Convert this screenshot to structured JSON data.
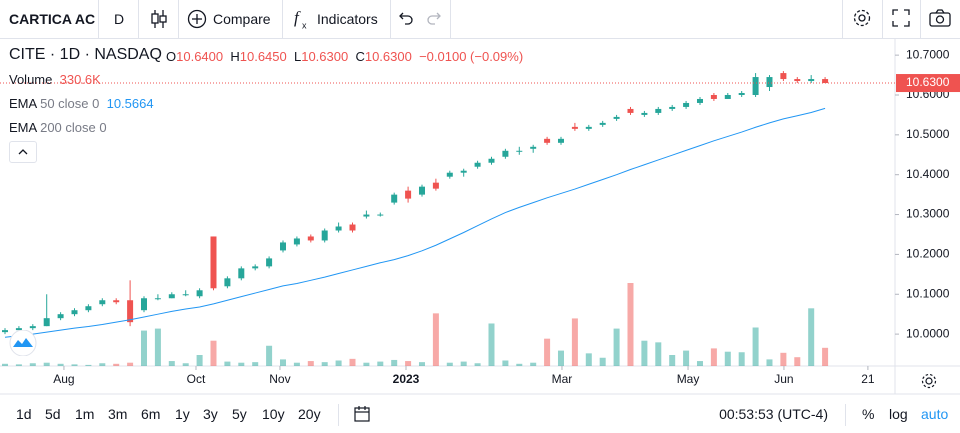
{
  "toolbar": {
    "symbol_name": "CARTICA AC",
    "interval": "D",
    "compare": "Compare",
    "indicators": "Indicators"
  },
  "legend": {
    "symbol": "CITE",
    "interval": "1D",
    "exchange": "NASDAQ",
    "open_label": "O",
    "open": "10.6400",
    "high_label": "H",
    "high": "10.6450",
    "low_label": "L",
    "low": "10.6300",
    "close_label": "C",
    "close": "10.6300",
    "change": "−0.0100 (−0.09%)",
    "volume_name": "Volume",
    "volume_value": "330.6K",
    "ema1_name": "EMA",
    "ema1_params": "50 close 0",
    "ema1_value": "10.5664",
    "ema2_name": "EMA",
    "ema2_params": "200 close 0"
  },
  "footer": {
    "ranges": [
      "1d",
      "5d",
      "1m",
      "3m",
      "6m",
      "1y",
      "3y",
      "5y",
      "10y",
      "20y"
    ],
    "clock": "00:53:53 (UTC-4)",
    "percent": "%",
    "log": "log",
    "auto": "auto"
  },
  "chart_data": {
    "type": "candlestick",
    "up_color": "#26a69a",
    "down_color": "#ef5350",
    "ema_color": "#2196f3",
    "xlim": [
      -0.36,
      64.03
    ],
    "xticks": [
      {
        "value": 4.24,
        "label": "Aug"
      },
      {
        "value": 13.74,
        "label": "Oct"
      },
      {
        "value": 19.78,
        "label": "Nov"
      },
      {
        "value": 28.85,
        "label": "2023"
      },
      {
        "value": 40.07,
        "label": "Mar"
      },
      {
        "value": 49.14,
        "label": "May"
      },
      {
        "value": 56.04,
        "label": "Jun"
      },
      {
        "value": 62.08,
        "label": "21"
      }
    ],
    "ylim": [
      9.92,
      10.743
    ],
    "yticks": [
      {
        "value": 10.0,
        "label": "10.0000"
      },
      {
        "value": 10.1,
        "label": "10.1000"
      },
      {
        "value": 10.2,
        "label": "10.2000"
      },
      {
        "value": 10.3,
        "label": "10.3000"
      },
      {
        "value": 10.4,
        "label": "10.4000"
      },
      {
        "value": 10.5,
        "label": "10.5000"
      },
      {
        "value": 10.6,
        "label": "10.6000"
      },
      {
        "value": 10.7,
        "label": "10.7000"
      }
    ],
    "grid": false,
    "last_price": {
      "value": 10.63,
      "label": "10.6300"
    },
    "volume_lim": [
      0,
      2000000
    ],
    "ohlc": [
      [
        10.005,
        10.015,
        10.0,
        10.01
      ],
      [
        10.01,
        10.02,
        10.01,
        10.015
      ],
      [
        10.015,
        10.025,
        10.01,
        10.02
      ],
      [
        10.02,
        10.1,
        10.02,
        10.04
      ],
      [
        10.04,
        10.055,
        10.035,
        10.05
      ],
      [
        10.05,
        10.065,
        10.045,
        10.06
      ],
      [
        10.06,
        10.075,
        10.055,
        10.07
      ],
      [
        10.075,
        10.09,
        10.07,
        10.085
      ],
      [
        10.085,
        10.09,
        10.075,
        10.08
      ],
      [
        10.085,
        10.135,
        10.02,
        10.03
      ],
      [
        10.06,
        10.095,
        10.055,
        10.09
      ],
      [
        10.09,
        10.1,
        10.085,
        10.09
      ],
      [
        10.09,
        10.105,
        10.09,
        10.1
      ],
      [
        10.1,
        10.11,
        10.095,
        10.1
      ],
      [
        10.095,
        10.115,
        10.09,
        10.11
      ],
      [
        10.245,
        10.245,
        10.11,
        10.115
      ],
      [
        10.12,
        10.145,
        10.115,
        10.14
      ],
      [
        10.14,
        10.17,
        10.135,
        10.165
      ],
      [
        10.165,
        10.175,
        10.16,
        10.17
      ],
      [
        10.17,
        10.195,
        10.165,
        10.19
      ],
      [
        10.21,
        10.235,
        10.205,
        10.23
      ],
      [
        10.225,
        10.245,
        10.22,
        10.24
      ],
      [
        10.245,
        10.25,
        10.23,
        10.235
      ],
      [
        10.235,
        10.265,
        10.23,
        10.26
      ],
      [
        10.26,
        10.28,
        10.255,
        10.27
      ],
      [
        10.275,
        10.28,
        10.255,
        10.26
      ],
      [
        10.295,
        10.31,
        10.29,
        10.3
      ],
      [
        10.3,
        10.305,
        10.295,
        10.3
      ],
      [
        10.33,
        10.355,
        10.325,
        10.35
      ],
      [
        10.36,
        10.37,
        10.33,
        10.34
      ],
      [
        10.35,
        10.375,
        10.345,
        10.37
      ],
      [
        10.38,
        10.39,
        10.36,
        10.365
      ],
      [
        10.395,
        10.41,
        10.39,
        10.405
      ],
      [
        10.405,
        10.415,
        10.395,
        10.41
      ],
      [
        10.42,
        10.435,
        10.415,
        10.43
      ],
      [
        10.43,
        10.445,
        10.425,
        10.44
      ],
      [
        10.445,
        10.465,
        10.44,
        10.46
      ],
      [
        10.46,
        10.47,
        10.45,
        10.46
      ],
      [
        10.465,
        10.475,
        10.455,
        10.47
      ],
      [
        10.49,
        10.495,
        10.475,
        10.48
      ],
      [
        10.48,
        10.495,
        10.475,
        10.49
      ],
      [
        10.52,
        10.53,
        10.51,
        10.515
      ],
      [
        10.515,
        10.525,
        10.51,
        10.52
      ],
      [
        10.525,
        10.535,
        10.52,
        10.53
      ],
      [
        10.54,
        10.55,
        10.535,
        10.545
      ],
      [
        10.565,
        10.57,
        10.55,
        10.555
      ],
      [
        10.55,
        10.56,
        10.545,
        10.555
      ],
      [
        10.555,
        10.57,
        10.55,
        10.565
      ],
      [
        10.565,
        10.575,
        10.56,
        10.57
      ],
      [
        10.57,
        10.585,
        10.565,
        10.58
      ],
      [
        10.58,
        10.595,
        10.575,
        10.59
      ],
      [
        10.6,
        10.605,
        10.585,
        10.59
      ],
      [
        10.59,
        10.605,
        10.59,
        10.6
      ],
      [
        10.6,
        10.61,
        10.595,
        10.605
      ],
      [
        10.6,
        10.655,
        10.595,
        10.645
      ],
      [
        10.62,
        10.65,
        10.61,
        10.645
      ],
      [
        10.655,
        10.66,
        10.635,
        10.64
      ],
      [
        10.64,
        10.645,
        10.63,
        10.635
      ],
      [
        10.635,
        10.65,
        10.63,
        10.64
      ],
      [
        10.64,
        10.645,
        10.63,
        10.63
      ]
    ],
    "volume": [
      40000,
      30000,
      50000,
      60000,
      40000,
      30000,
      20000,
      50000,
      40000,
      60000,
      644000,
      680000,
      90000,
      50000,
      200000,
      460000,
      80000,
      60000,
      70000,
      368000,
      120000,
      60000,
      90000,
      70000,
      100000,
      130000,
      60000,
      80000,
      110000,
      90000,
      70000,
      957000,
      60000,
      80000,
      50000,
      773000,
      100000,
      40000,
      60000,
      497000,
      280000,
      865000,
      230000,
      150000,
      680000,
      1509000,
      460000,
      430000,
      200000,
      280000,
      90000,
      320000,
      260000,
      250000,
      700000,
      120000,
      240000,
      160000,
      1049000,
      330600
    ],
    "ema": [
      9.992,
      9.996,
      10.0,
      10.005,
      10.01,
      10.015,
      10.019,
      10.024,
      10.03,
      10.036,
      10.043,
      10.05,
      10.057,
      10.063,
      10.068,
      10.076,
      10.085,
      10.094,
      10.103,
      10.112,
      10.121,
      10.127,
      10.135,
      10.143,
      10.152,
      10.161,
      10.17,
      10.179,
      10.187,
      10.197,
      10.209,
      10.223,
      10.239,
      10.255,
      10.272,
      10.289,
      10.305,
      10.318,
      10.33,
      10.342,
      10.353,
      10.364,
      10.376,
      10.388,
      10.4,
      10.413,
      10.425,
      10.437,
      10.449,
      10.461,
      10.473,
      10.485,
      10.496,
      10.507,
      10.519,
      10.53,
      10.54,
      10.548,
      10.556,
      10.5664
    ]
  }
}
